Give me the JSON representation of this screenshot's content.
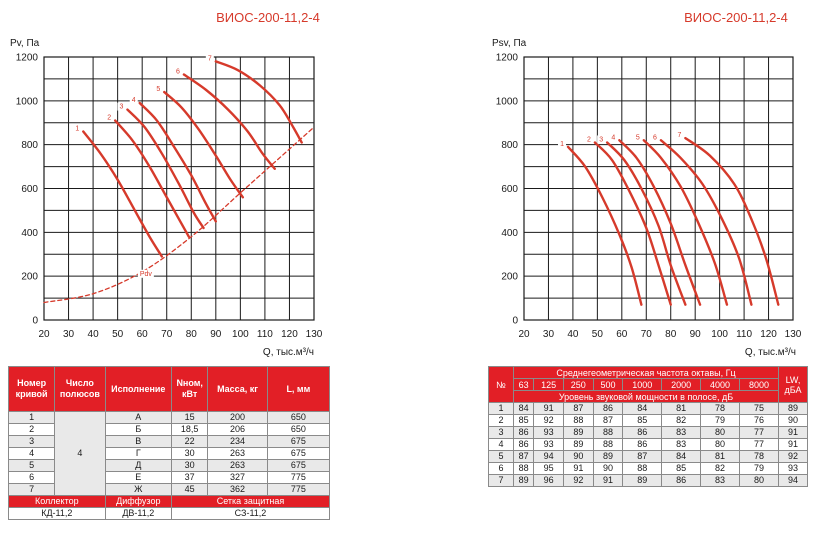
{
  "chart_data": [
    {
      "type": "line",
      "title": "ВИОС-200-11,2-4",
      "ylabel": "Pv, Па",
      "xlabel": "Q, тыс.м³/ч",
      "xlim": [
        20,
        130
      ],
      "ylim": [
        0,
        1200
      ],
      "xticks": [
        "20",
        "30",
        "40",
        "50",
        "60",
        "70",
        "80",
        "90",
        "100",
        "110",
        "120",
        "130"
      ],
      "yticks": [
        "0",
        "200",
        "400",
        "600",
        "800",
        "1000",
        "1200"
      ],
      "grid": true,
      "series": [
        {
          "name": "1",
          "points": [
            [
              36,
              860
            ],
            [
              43,
              760
            ],
            [
              50,
              640
            ],
            [
              57,
              500
            ],
            [
              63,
              380
            ],
            [
              68,
              290
            ]
          ]
        },
        {
          "name": "2",
          "points": [
            [
              49,
              910
            ],
            [
              56,
              820
            ],
            [
              63,
              700
            ],
            [
              70,
              560
            ],
            [
              75,
              460
            ],
            [
              79,
              380
            ]
          ]
        },
        {
          "name": "3",
          "points": [
            [
              54,
              960
            ],
            [
              61,
              880
            ],
            [
              68,
              760
            ],
            [
              75,
              620
            ],
            [
              81,
              490
            ],
            [
              85,
              420
            ]
          ]
        },
        {
          "name": "4",
          "points": [
            [
              59,
              990
            ],
            [
              66,
              910
            ],
            [
              73,
              790
            ],
            [
              80,
              660
            ],
            [
              86,
              530
            ],
            [
              90,
              450
            ]
          ]
        },
        {
          "name": "5",
          "points": [
            [
              69,
              1040
            ],
            [
              76,
              970
            ],
            [
              83,
              870
            ],
            [
              90,
              750
            ],
            [
              96,
              640
            ],
            [
              101,
              560
            ]
          ]
        },
        {
          "name": "6",
          "points": [
            [
              77,
              1120
            ],
            [
              86,
              1050
            ],
            [
              95,
              960
            ],
            [
              103,
              860
            ],
            [
              109,
              760
            ],
            [
              114,
              690
            ]
          ]
        },
        {
          "name": "7",
          "points": [
            [
              90,
              1180
            ],
            [
              99,
              1140
            ],
            [
              108,
              1070
            ],
            [
              116,
              980
            ],
            [
              121,
              890
            ],
            [
              125,
              810
            ]
          ]
        },
        {
          "name": "Pdv",
          "dashed": true,
          "points": [
            [
              20,
              80
            ],
            [
              40,
              120
            ],
            [
              60,
              220
            ],
            [
              80,
              380
            ],
            [
              100,
              580
            ],
            [
              115,
              730
            ],
            [
              130,
              880
            ]
          ]
        }
      ]
    },
    {
      "type": "line",
      "title": "ВИОС-200-11,2-4",
      "ylabel": "Psv, Па",
      "xlabel": "Q, тыс.м³/ч",
      "xlim": [
        20,
        130
      ],
      "ylim": [
        0,
        1200
      ],
      "xticks": [
        "20",
        "30",
        "40",
        "50",
        "60",
        "70",
        "80",
        "90",
        "100",
        "110",
        "120",
        "130"
      ],
      "yticks": [
        "0",
        "200",
        "400",
        "600",
        "800",
        "1000",
        "1200"
      ],
      "grid": true,
      "series": [
        {
          "name": "1",
          "points": [
            [
              38,
              790
            ],
            [
              45,
              700
            ],
            [
              52,
              560
            ],
            [
              59,
              390
            ],
            [
              64,
              240
            ],
            [
              68,
              70
            ]
          ]
        },
        {
          "name": "2",
          "points": [
            [
              49,
              810
            ],
            [
              56,
              730
            ],
            [
              63,
              590
            ],
            [
              70,
              420
            ],
            [
              75,
              250
            ],
            [
              80,
              70
            ]
          ]
        },
        {
          "name": "3",
          "points": [
            [
              54,
              810
            ],
            [
              61,
              730
            ],
            [
              68,
              600
            ],
            [
              75,
              430
            ],
            [
              80,
              250
            ],
            [
              86,
              70
            ]
          ]
        },
        {
          "name": "4",
          "points": [
            [
              59,
              820
            ],
            [
              66,
              740
            ],
            [
              73,
              610
            ],
            [
              80,
              440
            ],
            [
              86,
              250
            ],
            [
              92,
              70
            ]
          ]
        },
        {
          "name": "5",
          "points": [
            [
              69,
              820
            ],
            [
              76,
              740
            ],
            [
              84,
              610
            ],
            [
              91,
              450
            ],
            [
              98,
              260
            ],
            [
              103,
              70
            ]
          ]
        },
        {
          "name": "6",
          "points": [
            [
              76,
              820
            ],
            [
              84,
              740
            ],
            [
              93,
              620
            ],
            [
              101,
              460
            ],
            [
              108,
              280
            ],
            [
              113,
              70
            ]
          ]
        },
        {
          "name": "7",
          "points": [
            [
              86,
              830
            ],
            [
              96,
              750
            ],
            [
              106,
              620
            ],
            [
              113,
              460
            ],
            [
              119,
              280
            ],
            [
              124,
              70
            ]
          ]
        }
      ]
    }
  ],
  "left_table": {
    "headers": [
      "Номер кривой",
      "Число полюсов",
      "Исполнение",
      "Nном, кВт",
      "Масса, кг",
      "L, мм"
    ],
    "poles": "4",
    "rows": [
      [
        "1",
        "А",
        "15",
        "200",
        "650"
      ],
      [
        "2",
        "Б",
        "18,5",
        "206",
        "650"
      ],
      [
        "3",
        "В",
        "22",
        "234",
        "675"
      ],
      [
        "4",
        "Г",
        "30",
        "263",
        "675"
      ],
      [
        "5",
        "Д",
        "30",
        "263",
        "675"
      ],
      [
        "6",
        "Е",
        "37",
        "327",
        "775"
      ],
      [
        "7",
        "Ж",
        "45",
        "362",
        "775"
      ]
    ],
    "footer_headers": [
      "Коллектор",
      "Диффузор",
      "Сетка защитная"
    ],
    "footer_values": [
      "КД-11,2",
      "ДВ-11,2",
      "СЗ-11,2"
    ]
  },
  "right_table": {
    "no_header": "№",
    "freq_header": "Среднегеометрическая частота октавы, Гц",
    "freqs": [
      "63",
      "125",
      "250",
      "500",
      "1000",
      "2000",
      "4000",
      "8000"
    ],
    "level_header": "Уровень звуковой мощности в полосе, дБ",
    "lw_header": "LW, дБА",
    "rows": [
      [
        "1",
        "84",
        "91",
        "87",
        "86",
        "84",
        "81",
        "78",
        "75",
        "89"
      ],
      [
        "2",
        "85",
        "92",
        "88",
        "87",
        "85",
        "82",
        "79",
        "76",
        "90"
      ],
      [
        "3",
        "86",
        "93",
        "89",
        "88",
        "86",
        "83",
        "80",
        "77",
        "91"
      ],
      [
        "4",
        "86",
        "93",
        "89",
        "88",
        "86",
        "83",
        "80",
        "77",
        "91"
      ],
      [
        "5",
        "87",
        "94",
        "90",
        "89",
        "87",
        "84",
        "81",
        "78",
        "92"
      ],
      [
        "6",
        "88",
        "95",
        "91",
        "90",
        "88",
        "85",
        "82",
        "79",
        "93"
      ],
      [
        "7",
        "89",
        "96",
        "92",
        "91",
        "89",
        "86",
        "83",
        "80",
        "94"
      ]
    ]
  },
  "colors": {
    "accent": "#e21f26",
    "curve": "#d63a2b",
    "row_shade": "#e9e9e9"
  }
}
